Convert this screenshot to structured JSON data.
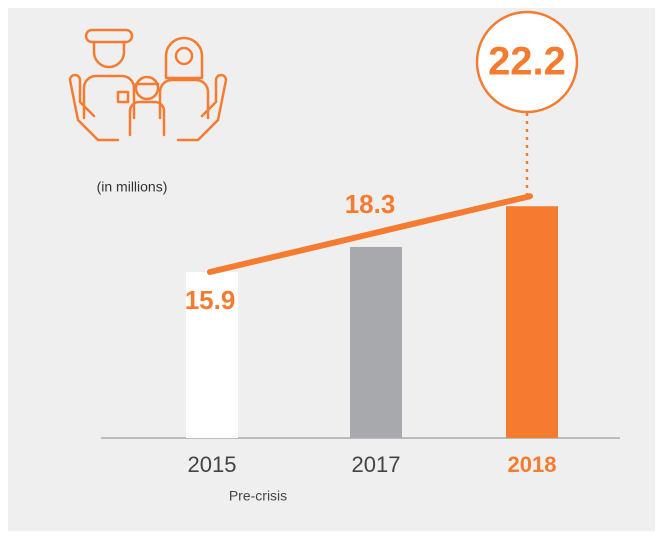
{
  "chart_data": {
    "type": "bar",
    "subtitle": "(in millions)",
    "categories": [
      "2015",
      "2017",
      "2018"
    ],
    "category_notes": [
      "Pre-crisis",
      null,
      null
    ],
    "values": [
      15.9,
      18.3,
      22.2
    ],
    "colors": [
      "#ffffff",
      "#a7a9ac",
      "#f47b30"
    ],
    "accent": "#f47b30",
    "highlight_index": 2,
    "ylim": [
      0,
      25
    ]
  }
}
